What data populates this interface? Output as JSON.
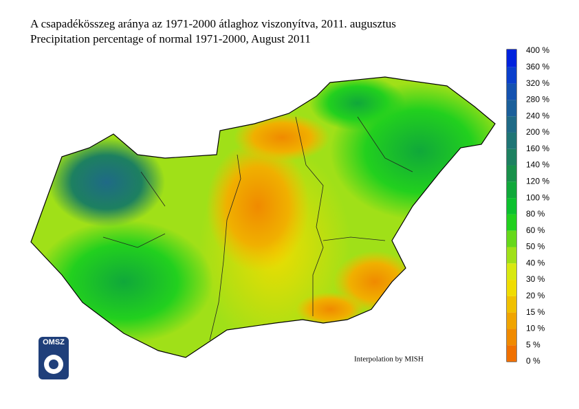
{
  "header": {
    "title_hu": "A csapadékösszeg aránya az 1971-2000 átlaghoz viszonyítva, 2011. augusztus",
    "title_en": "Precipitation percentage of normal 1971-2000, August 2011"
  },
  "legend": {
    "labels": [
      "400 %",
      "360 %",
      "320 %",
      "280 %",
      "240 %",
      "200 %",
      "160 %",
      "140 %",
      "120 %",
      "100 %",
      "80 %",
      "60 %",
      "50 %",
      "40 %",
      "30 %",
      "20 %",
      "15 %",
      "10 %",
      "5 %",
      "0 %"
    ],
    "colors": [
      "#0022dd",
      "#0a3fcc",
      "#1452b0",
      "#1b5f9a",
      "#1f6a86",
      "#1f7575",
      "#1d8060",
      "#18904a",
      "#10a83a",
      "#0cc02e",
      "#22d01e",
      "#66d81a",
      "#a0e018",
      "#d8e810",
      "#f0dc00",
      "#f0c000",
      "#f0a400",
      "#f08a00",
      "#f07000"
    ]
  },
  "credit": "Interpolation by MISH",
  "logo": "OMSZ"
}
